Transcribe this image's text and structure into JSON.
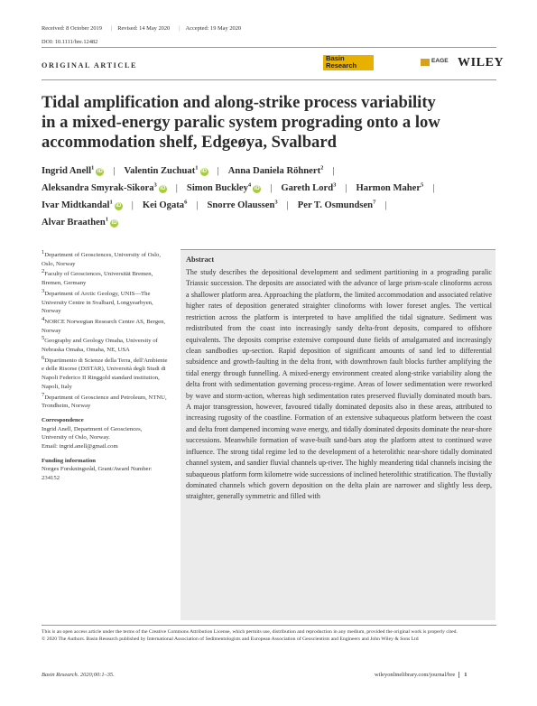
{
  "header": {
    "received": "Received: 8 October 2019",
    "revised": "Revised: 14 May 2020",
    "accepted": "Accepted: 19 May 2020",
    "doi": "DOI: 10.1111/bre.12482",
    "article_type": "ORIGINAL ARTICLE",
    "journal_logo_line1": "Basin",
    "journal_logo_line2": "Research",
    "eage": "EAGE",
    "publisher": "WILEY"
  },
  "title_lines": [
    "Tidal amplification and along-strike process variability",
    "in a mixed-energy paralic system prograding onto a low",
    "accommodation shelf, Edgeøya, Svalbard"
  ],
  "authors": [
    {
      "name": "Ingrid Anell",
      "sup": "1"
    },
    {
      "name": "Valentin Zuchuat",
      "sup": "1"
    },
    {
      "name": "Anna Daniela Röhnert",
      "sup": "2"
    },
    {
      "name": "Aleksandra Smyrak-Sikora",
      "sup": "3"
    },
    {
      "name": "Simon Buckley",
      "sup": "4"
    },
    {
      "name": "Gareth Lord",
      "sup": "3"
    },
    {
      "name": "Harmon Maher",
      "sup": "5"
    },
    {
      "name": "Ivar Midtkandal",
      "sup": "1"
    },
    {
      "name": "Kei Ogata",
      "sup": "6"
    },
    {
      "name": "Snorre Olaussen",
      "sup": "3"
    },
    {
      "name": "Per T. Osmundsen",
      "sup": "7"
    },
    {
      "name": "Alvar Braathen",
      "sup": "1"
    }
  ],
  "affiliations": [
    {
      "sup": "1",
      "text": "Department of Geosciences, University of Oslo, Oslo, Norway"
    },
    {
      "sup": "2",
      "text": "Faculty of Geosciences, Universität Bremen, Bremen, Germany"
    },
    {
      "sup": "3",
      "text": "Department of Arctic Geology, UNIS—The University Centre in Svalbard, Longyearbyen, Norway"
    },
    {
      "sup": "4",
      "text": "NORCE Norwegian Research Centre AS, Bergen, Norway"
    },
    {
      "sup": "5",
      "text": "Geography and Geology Omaha, University of Nebraska Omaha, Omaha, NE, USA"
    },
    {
      "sup": "6",
      "text": "Dipartimento di Scienze della Terra, dell'Ambiente e delle Risorse (DiSTAR), Università degli Studi di Napoli Federico II Ringgold standard institution, Napoli, Italy"
    },
    {
      "sup": "7",
      "text": "Department of Geoscience and Petroleum, NTNU, Trondheim, Norway"
    }
  ],
  "correspondence": {
    "heading": "Correspondence",
    "text": "Ingrid Anell, Department of Geosciences, University of Oslo, Norway.",
    "email": "Email: ingrid.anell@gmail.com"
  },
  "funding": {
    "heading": "Funding information",
    "text": "Norges Forskningsråd, Grant/Award Number: 234152"
  },
  "abstract": {
    "heading": "Abstract",
    "text": "The study describes the depositional development and sediment partitioning in a prograding paralic Triassic succession. The deposits are associated with the advance of large prism-scale clinoforms across a shallower platform area. Approaching the platform, the limited accommodation and associated relative higher rates of deposition generated straighter clinoforms with lower foreset angles. The vertical restriction across the platform is interpreted to have amplified the tidal signature. Sediment was redistributed from the coast into increasingly sandy delta-front deposits, compared to offshore equivalents. The deposits comprise extensive compound dune fields of amalgamated and increasingly clean sandbodies up-section. Rapid deposition of significant amounts of sand led to differential subsidence and growth-faulting in the delta front, with downthrown fault blocks further amplifying the tidal energy through funnelling. A mixed-energy environment created along-strike variability along the delta front with sedimentation governing process-regime. Areas of lower sedimentation were reworked by wave and storm-action, whereas high sedimentation rates preserved fluvially dominated mouth bars. A major transgression, however, favoured tidally dominated deposits also in these areas, attributed to increasing rugosity of the coastline. Formation of an extensive subaqueous platform between the coast and delta front dampened incoming wave energy, and tidally dominated deposits dominate the near-shore successions. Meanwhile formation of wave-built sand-bars atop the platform attest to continued wave influence. The strong tidal regime led to the development of a heterolithic near-shore tidally dominated channel system, and sandier fluvial channels up-river. The highly meandering tidal channels incising the subaqueous platform form kilometre wide successions of inclined heterolithic stratification. The fluvially dominated channels which govern deposition on the delta plain are narrower and slightly less deep, straighter, generally symmetric and filled with"
  },
  "license": {
    "line1": "This is an open access article under the terms of the Creative Commons Attribution License, which permits use, distribution and reproduction in any medium, provided the original work is properly cited.",
    "line2": "© 2020 The Authors. Basin Research published by International Association of Sedimentologists and European Association of Geoscientists and Engineers and John Wiley & Sons Ltd"
  },
  "footer": {
    "citation": "Basin Research. 2020;00:1–35.",
    "url": "wileyonlinelibrary.com/journal/bre",
    "page": "1"
  }
}
